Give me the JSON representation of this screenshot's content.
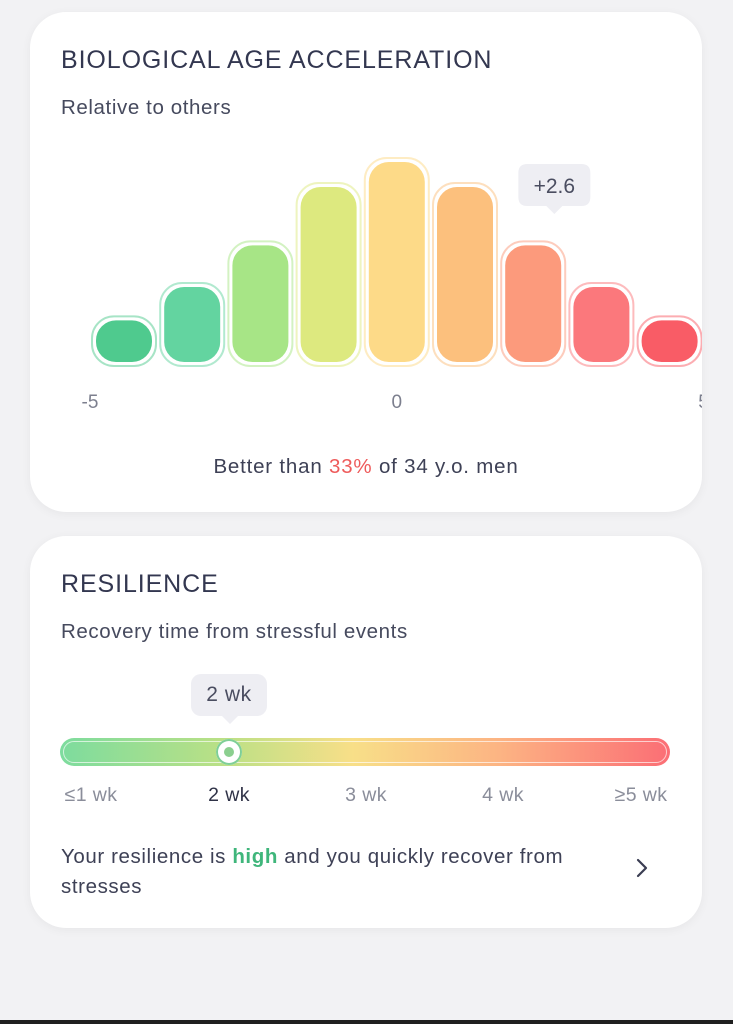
{
  "bio_card": {
    "title": "BIOLOGICAL AGE ACCELERATION",
    "subtitle": "Relative to others",
    "result_prefix": "Better than ",
    "result_highlight": "33%",
    "result_suffix": " of 34 y.o. men",
    "highlight_color": "#ee5b5b"
  },
  "chart_data": {
    "type": "bar",
    "categories": [
      "-4",
      "-3",
      "-2",
      "-1",
      "0",
      "1",
      "2",
      "3",
      "4"
    ],
    "values": [
      5,
      9,
      14,
      21,
      24,
      21,
      14,
      9,
      5
    ],
    "ylim": [
      0,
      24
    ],
    "colors": [
      "#4fca8e",
      "#63d4a0",
      "#a7e586",
      "#dde97f",
      "#fdda88",
      "#fcc07d",
      "#fc9a7c",
      "#fb787c",
      "#f95c66"
    ],
    "x_ticks": [
      "-5",
      "0",
      "5"
    ],
    "marker_label": "+2.6",
    "marker_value": 2.6,
    "grid": false,
    "legend": "none"
  },
  "res_card": {
    "title": "RESILIENCE",
    "subtitle": "Recovery time from stressful events",
    "current_label": "2 wk",
    "ticks": [
      "≤1 wk",
      "2 wk",
      "3 wk",
      "4 wk",
      "≥5 wk"
    ],
    "selected_index": 1,
    "desc_prefix": "Your resilience is ",
    "desc_highlight": "high",
    "desc_suffix": " and you quickly recover from stresses",
    "highlight_color": "#3fb67b",
    "chevron_icon": "chevron-right-icon"
  }
}
